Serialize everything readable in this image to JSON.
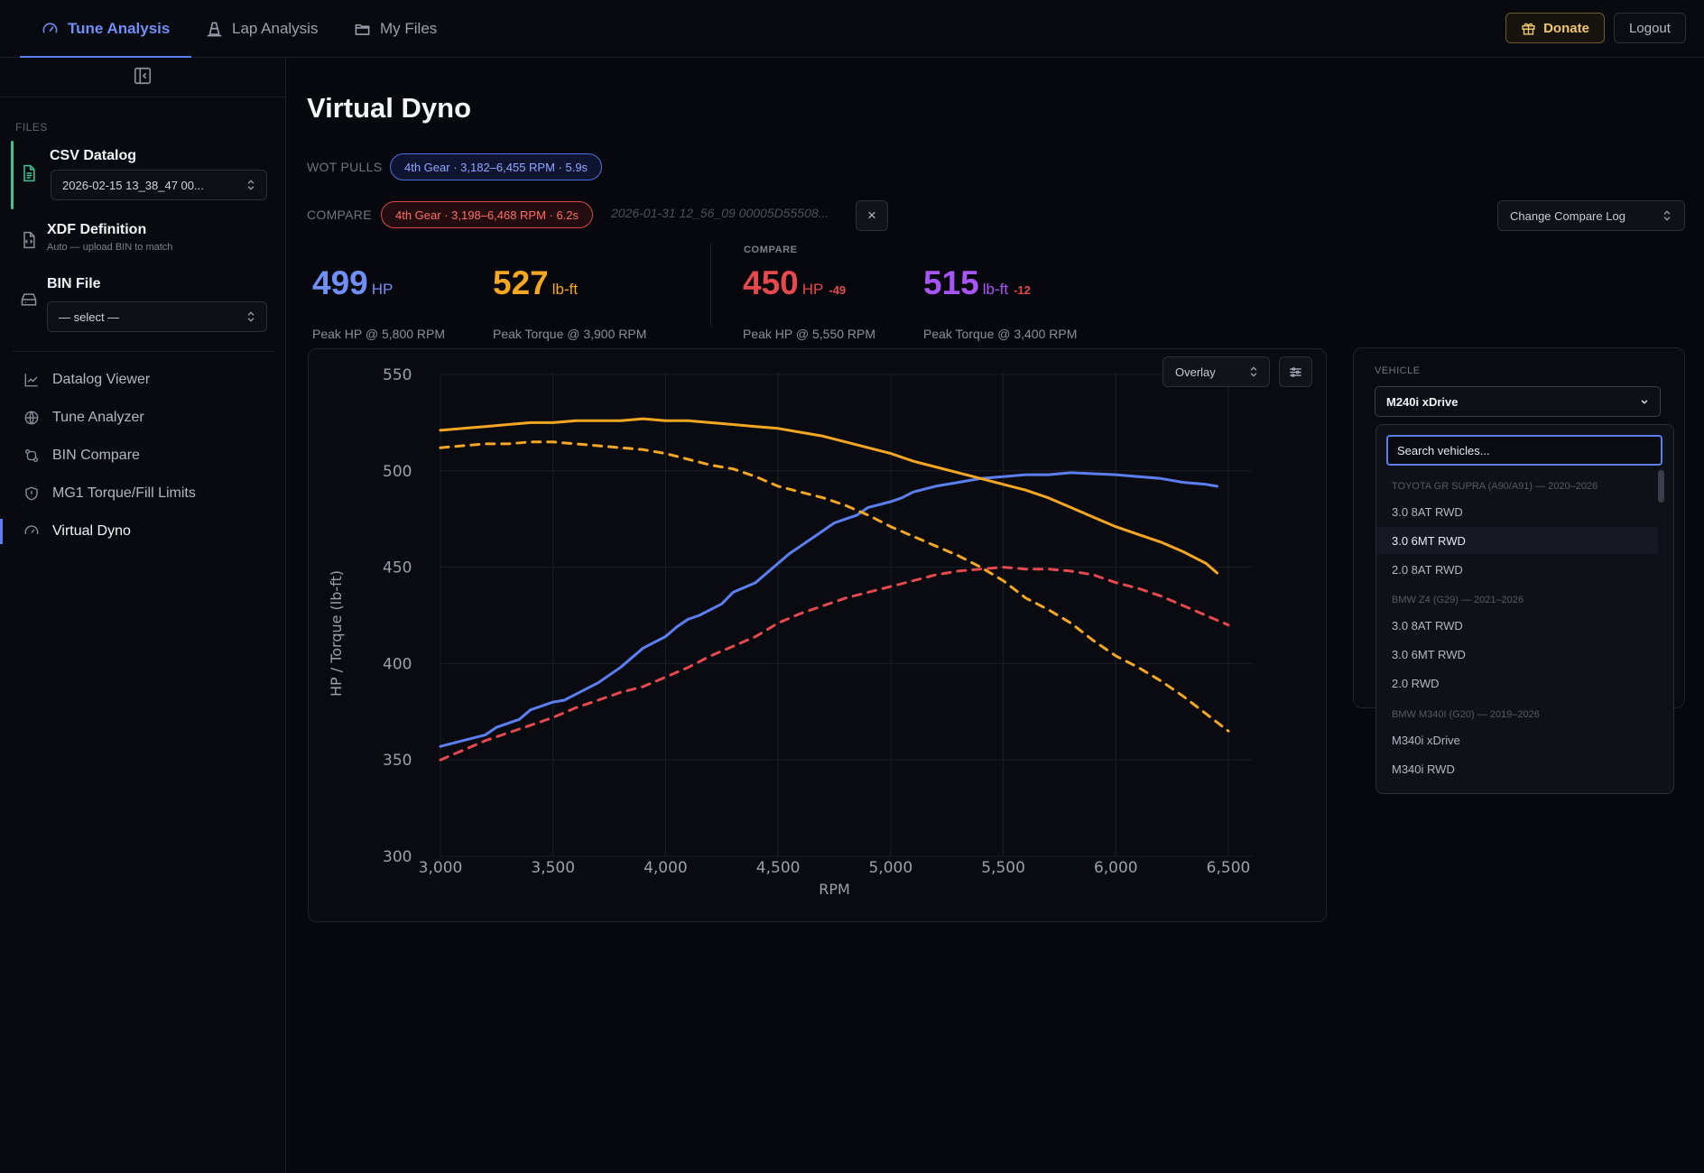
{
  "header": {
    "tabs": [
      {
        "label": "Tune Analysis",
        "icon": "gauge-icon",
        "active": true
      },
      {
        "label": "Lap Analysis",
        "icon": "cone-icon",
        "active": false
      },
      {
        "label": "My Files",
        "icon": "folder-icon",
        "active": false
      }
    ],
    "donate_label": "Donate",
    "logout_label": "Logout"
  },
  "sidebar": {
    "files_label": "FILES",
    "csv": {
      "title": "CSV Datalog",
      "value": "2026-02-15 13_38_47 00..."
    },
    "xdf": {
      "title": "XDF Definition",
      "subtitle": "Auto — upload BIN to match"
    },
    "bin": {
      "title": "BIN File",
      "value": "— select —"
    },
    "nav": [
      {
        "label": "Datalog Viewer",
        "icon": "line-chart-icon",
        "active": false
      },
      {
        "label": "Tune Analyzer",
        "icon": "globe-icon",
        "active": false
      },
      {
        "label": "BIN Compare",
        "icon": "compare-icon",
        "active": false
      },
      {
        "label": "MG1 Torque/Fill Limits",
        "icon": "shield-icon",
        "active": false
      },
      {
        "label": "Virtual Dyno",
        "icon": "gauge-icon",
        "active": true
      }
    ]
  },
  "main": {
    "title": "Virtual Dyno",
    "wot_label": "WOT PULLS",
    "wot_pill": "4th Gear · 3,182–6,455 RPM · 5.9s",
    "compare_label": "COMPARE",
    "compare_pill": "4th Gear · 3,198–6,468 RPM · 6.2s",
    "compare_file": "2026-01-31 12_56_09 00005D55508...",
    "clear_compare": "×",
    "change_compare": "Change Compare Log",
    "stats": {
      "hp": {
        "value": "499",
        "unit": "HP",
        "caption": "Peak HP @ 5,800 RPM"
      },
      "tq": {
        "value": "527",
        "unit": "lb-ft",
        "caption": "Peak Torque @ 3,900 RPM"
      },
      "compare_heading": "COMPARE",
      "cmp_hp": {
        "value": "450",
        "unit": "HP",
        "delta": "-49",
        "caption": "Peak HP @ 5,550 RPM"
      },
      "cmp_tq": {
        "value": "515",
        "unit": "lb-ft",
        "delta": "-12",
        "caption": "Peak Torque @ 3,400 RPM"
      }
    },
    "overlay_select": "Overlay"
  },
  "vehicle": {
    "label": "VEHICLE",
    "selected": "M240i xDrive",
    "search_placeholder": "Search vehicles...",
    "groups": [
      {
        "label": "TOYOTA GR SUPRA (A90/A91) — 2020–2026",
        "options": [
          "3.0 8AT RWD",
          "3.0 6MT RWD",
          "2.0 8AT RWD"
        ]
      },
      {
        "label": "BMW Z4 (G29) — 2021–2026",
        "options": [
          "3.0 8AT RWD",
          "3.0 6MT RWD",
          "2.0 RWD"
        ]
      },
      {
        "label": "BMW M340I (G20) — 2019–2026",
        "options": [
          "M340i xDrive",
          "M340i RWD"
        ]
      }
    ],
    "highlighted": "3.0 6MT RWD"
  },
  "colors": {
    "accent": "#5b7ff0",
    "hp": "#5b7ff0",
    "torque": "#f5a623",
    "compare_hp": "#e5484d",
    "compare_torque": "#a855f7"
  },
  "chart_data": {
    "type": "line",
    "xlabel": "RPM",
    "ylabel": "HP / Torque (lb-ft)",
    "xlim": [
      3000,
      6500
    ],
    "ylim": [
      300,
      550
    ],
    "xticks": [
      3000,
      3500,
      4000,
      4500,
      5000,
      5500,
      6000,
      6500
    ],
    "yticks": [
      300,
      350,
      400,
      450,
      500,
      550
    ],
    "grid": true,
    "series": [
      {
        "color": "#5b7ff0",
        "dash": false,
        "x": [
          3000,
          3100,
          3200,
          3250,
          3350,
          3400,
          3500,
          3550,
          3600,
          3650,
          3700,
          3800,
          3900,
          4000,
          4050,
          4100,
          4150,
          4250,
          4300,
          4400,
          4500,
          4550,
          4650,
          4750,
          4800,
          4850,
          4900,
          5000,
          5050,
          5100,
          5200,
          5300,
          5400,
          5500,
          5600,
          5700,
          5800,
          6000,
          6100,
          6200,
          6300,
          6400,
          6450
        ],
        "y": [
          357,
          360,
          363,
          367,
          371,
          376,
          380,
          381,
          384,
          387,
          390,
          398,
          408,
          414,
          419,
          423,
          425,
          431,
          437,
          442,
          452,
          457,
          465,
          473,
          475,
          477,
          481,
          484,
          486,
          489,
          492,
          494,
          496,
          497,
          498,
          498,
          499,
          498,
          497,
          496,
          494,
          493,
          492
        ]
      },
      {
        "color": "#f5a623",
        "dash": false,
        "x": [
          3000,
          3100,
          3200,
          3300,
          3400,
          3500,
          3600,
          3700,
          3800,
          3900,
          4000,
          4100,
          4200,
          4300,
          4400,
          4500,
          4600,
          4700,
          4800,
          4900,
          5000,
          5100,
          5200,
          5300,
          5400,
          5500,
          5600,
          5700,
          5800,
          5900,
          6000,
          6100,
          6200,
          6300,
          6400,
          6450
        ],
        "y": [
          521,
          522,
          523,
          524,
          525,
          525,
          526,
          526,
          526,
          527,
          526,
          526,
          525,
          524,
          523,
          522,
          520,
          518,
          515,
          512,
          509,
          505,
          502,
          499,
          496,
          493,
          490,
          486,
          481,
          476,
          471,
          467,
          463,
          458,
          452,
          447
        ]
      },
      {
        "color": "#e5484d",
        "dash": true,
        "x": [
          3000,
          3100,
          3200,
          3300,
          3400,
          3500,
          3600,
          3700,
          3800,
          3900,
          4000,
          4100,
          4200,
          4300,
          4400,
          4500,
          4600,
          4700,
          4800,
          4900,
          5000,
          5100,
          5200,
          5300,
          5400,
          5500,
          5600,
          5700,
          5800,
          5900,
          6000,
          6100,
          6200,
          6300,
          6400,
          6500
        ],
        "y": [
          350,
          355,
          360,
          364,
          368,
          372,
          377,
          381,
          385,
          388,
          393,
          398,
          404,
          409,
          414,
          421,
          426,
          430,
          434,
          437,
          440,
          443,
          446,
          448,
          449,
          450,
          449,
          449,
          448,
          446,
          442,
          439,
          435,
          430,
          425,
          420
        ]
      },
      {
        "color": "#f5a623",
        "dash": true,
        "x": [
          3000,
          3100,
          3200,
          3300,
          3400,
          3500,
          3600,
          3700,
          3800,
          3900,
          4000,
          4100,
          4200,
          4300,
          4400,
          4500,
          4600,
          4700,
          4800,
          4900,
          5000,
          5100,
          5200,
          5300,
          5400,
          5500,
          5600,
          5700,
          5800,
          5900,
          6000,
          6100,
          6200,
          6300,
          6400,
          6500
        ],
        "y": [
          512,
          513,
          514,
          514,
          515,
          515,
          514,
          513,
          512,
          511,
          509,
          506,
          503,
          501,
          497,
          492,
          489,
          486,
          482,
          477,
          471,
          466,
          461,
          456,
          450,
          443,
          434,
          428,
          421,
          412,
          404,
          398,
          391,
          383,
          374,
          365
        ]
      }
    ]
  }
}
